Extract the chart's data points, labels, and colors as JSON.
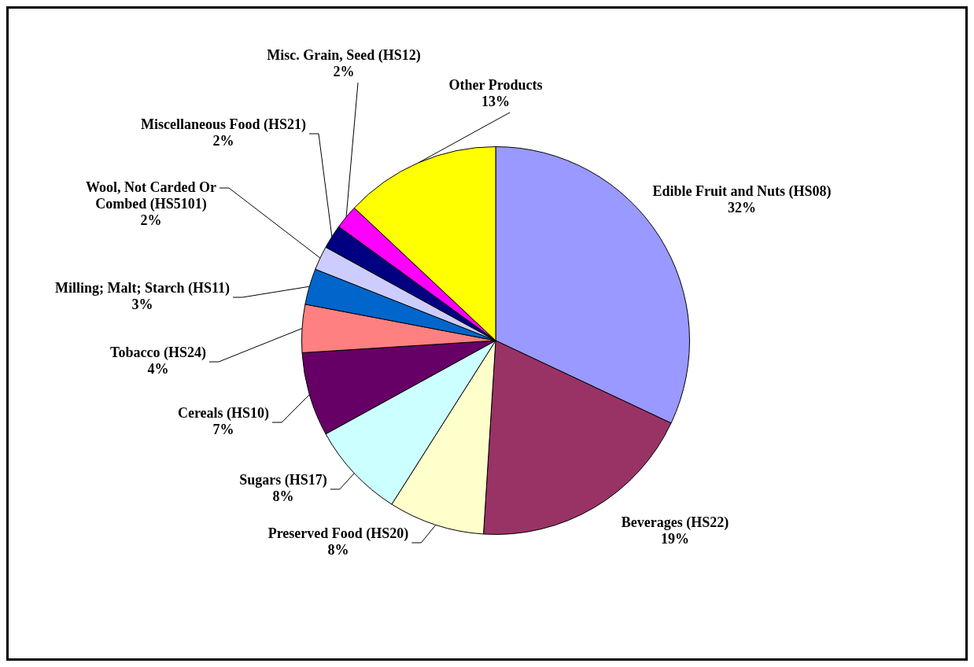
{
  "chart_data": {
    "type": "pie",
    "categories": [
      "Edible Fruit and Nuts (HS08)",
      "Beverages (HS22)",
      "Preserved Food (HS20)",
      "Sugars (HS17)",
      "Cereals (HS10)",
      "Tobacco (HS24)",
      "Milling; Malt; Starch (HS11)",
      "Wool, Not Carded Or Combed (HS5101)",
      "Miscellaneous Food (HS21)",
      "Misc. Grain, Seed (HS12)",
      "Other Products"
    ],
    "values": [
      32,
      19,
      8,
      8,
      7,
      4,
      3,
      2,
      2,
      2,
      13
    ],
    "value_labels": [
      "32%",
      "19%",
      "8%",
      "8%",
      "7%",
      "4%",
      "3%",
      "2%",
      "2%",
      "2%",
      "13%"
    ],
    "colors": [
      "#9999ff",
      "#993366",
      "#ffffcc",
      "#ccffff",
      "#660066",
      "#ff8080",
      "#0066cc",
      "#ccccff",
      "#000080",
      "#ff00ff",
      "#ffff00"
    ],
    "legend": false
  }
}
